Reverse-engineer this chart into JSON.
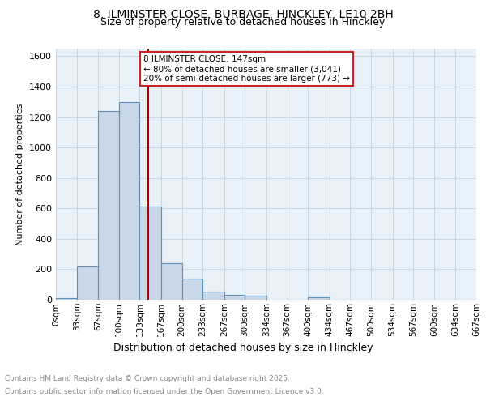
{
  "title_line1": "8, ILMINSTER CLOSE, BURBAGE, HINCKLEY, LE10 2BH",
  "title_line2": "Size of property relative to detached houses in Hinckley",
  "xlabel": "Distribution of detached houses by size in Hinckley",
  "ylabel": "Number of detached properties",
  "bin_edges": [
    0,
    33,
    67,
    100,
    133,
    167,
    200,
    233,
    267,
    300,
    334,
    367,
    400,
    434,
    467,
    500,
    534,
    567,
    600,
    634,
    667
  ],
  "bar_heights": [
    10,
    220,
    1240,
    1300,
    610,
    240,
    140,
    55,
    30,
    25,
    0,
    0,
    15,
    0,
    0,
    0,
    0,
    0,
    0,
    0
  ],
  "bar_color": "#c8d8e8",
  "bar_edge_color": "#6090b8",
  "red_line_x": 147,
  "annotation_line1": "8 ILMINSTER CLOSE: 147sqm",
  "annotation_line2": "← 80% of detached houses are smaller (3,041)",
  "annotation_line3": "20% of semi-detached houses are larger (773) →",
  "annotation_box_color": "#ffffff",
  "annotation_box_edge": "#cc2222",
  "ylim": [
    0,
    1650
  ],
  "yticks": [
    0,
    200,
    400,
    600,
    800,
    1000,
    1200,
    1400,
    1600
  ],
  "tick_labels": [
    "0sqm",
    "33sqm",
    "67sqm",
    "100sqm",
    "133sqm",
    "167sqm",
    "200sqm",
    "233sqm",
    "267sqm",
    "300sqm",
    "334sqm",
    "367sqm",
    "400sqm",
    "434sqm",
    "467sqm",
    "500sqm",
    "534sqm",
    "567sqm",
    "600sqm",
    "634sqm",
    "667sqm"
  ],
  "grid_color": "#c8d8e8",
  "background_color": "#e8f0f8",
  "footer_line1": "Contains HM Land Registry data © Crown copyright and database right 2025.",
  "footer_line2": "Contains public sector information licensed under the Open Government Licence v3.0.",
  "footer_color": "#888888"
}
